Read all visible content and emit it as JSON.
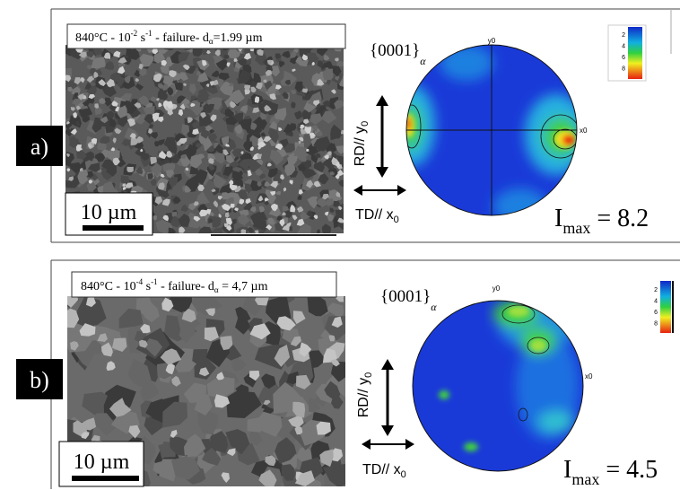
{
  "panels": [
    {
      "label": "a)",
      "caption": {
        "temp": "840°C - 10",
        "rate_exp": "-2",
        "unit": " s",
        "unit_exp": "-1",
        "failure": " - failure- d",
        "sub": "α",
        "size": "=1.99 µm"
      },
      "scale_bar": "10 µm",
      "pole_figure": {
        "plane": "{0001}",
        "plane_sub": "α",
        "rd": "RD// y",
        "rd_sub": "0",
        "td": "TD// x",
        "td_sub": "0",
        "y_axis": "y0",
        "x_axis": "x0",
        "imax": "I",
        "imax_sub": "max",
        "imax_value": " = 8.2",
        "legend": [
          "2",
          "4",
          "6",
          "8"
        ]
      }
    },
    {
      "label": "b)",
      "caption": {
        "temp": "840°C - 10",
        "rate_exp": "-4",
        "unit": " s",
        "unit_exp": "-1",
        "failure": " - failure- d",
        "sub": "α",
        "size": " = 4,7 µm"
      },
      "scale_bar": "10 µm",
      "pole_figure": {
        "plane": "{0001}",
        "plane_sub": "α",
        "rd": "RD// y",
        "rd_sub": "0",
        "td": "TD// x",
        "td_sub": "0",
        "y_axis": "y0",
        "x_axis": "x0",
        "imax": "I",
        "imax_sub": "max",
        "imax_value": " = 4.5",
        "legend": [
          "2",
          "4",
          "6",
          "8"
        ]
      }
    }
  ]
}
